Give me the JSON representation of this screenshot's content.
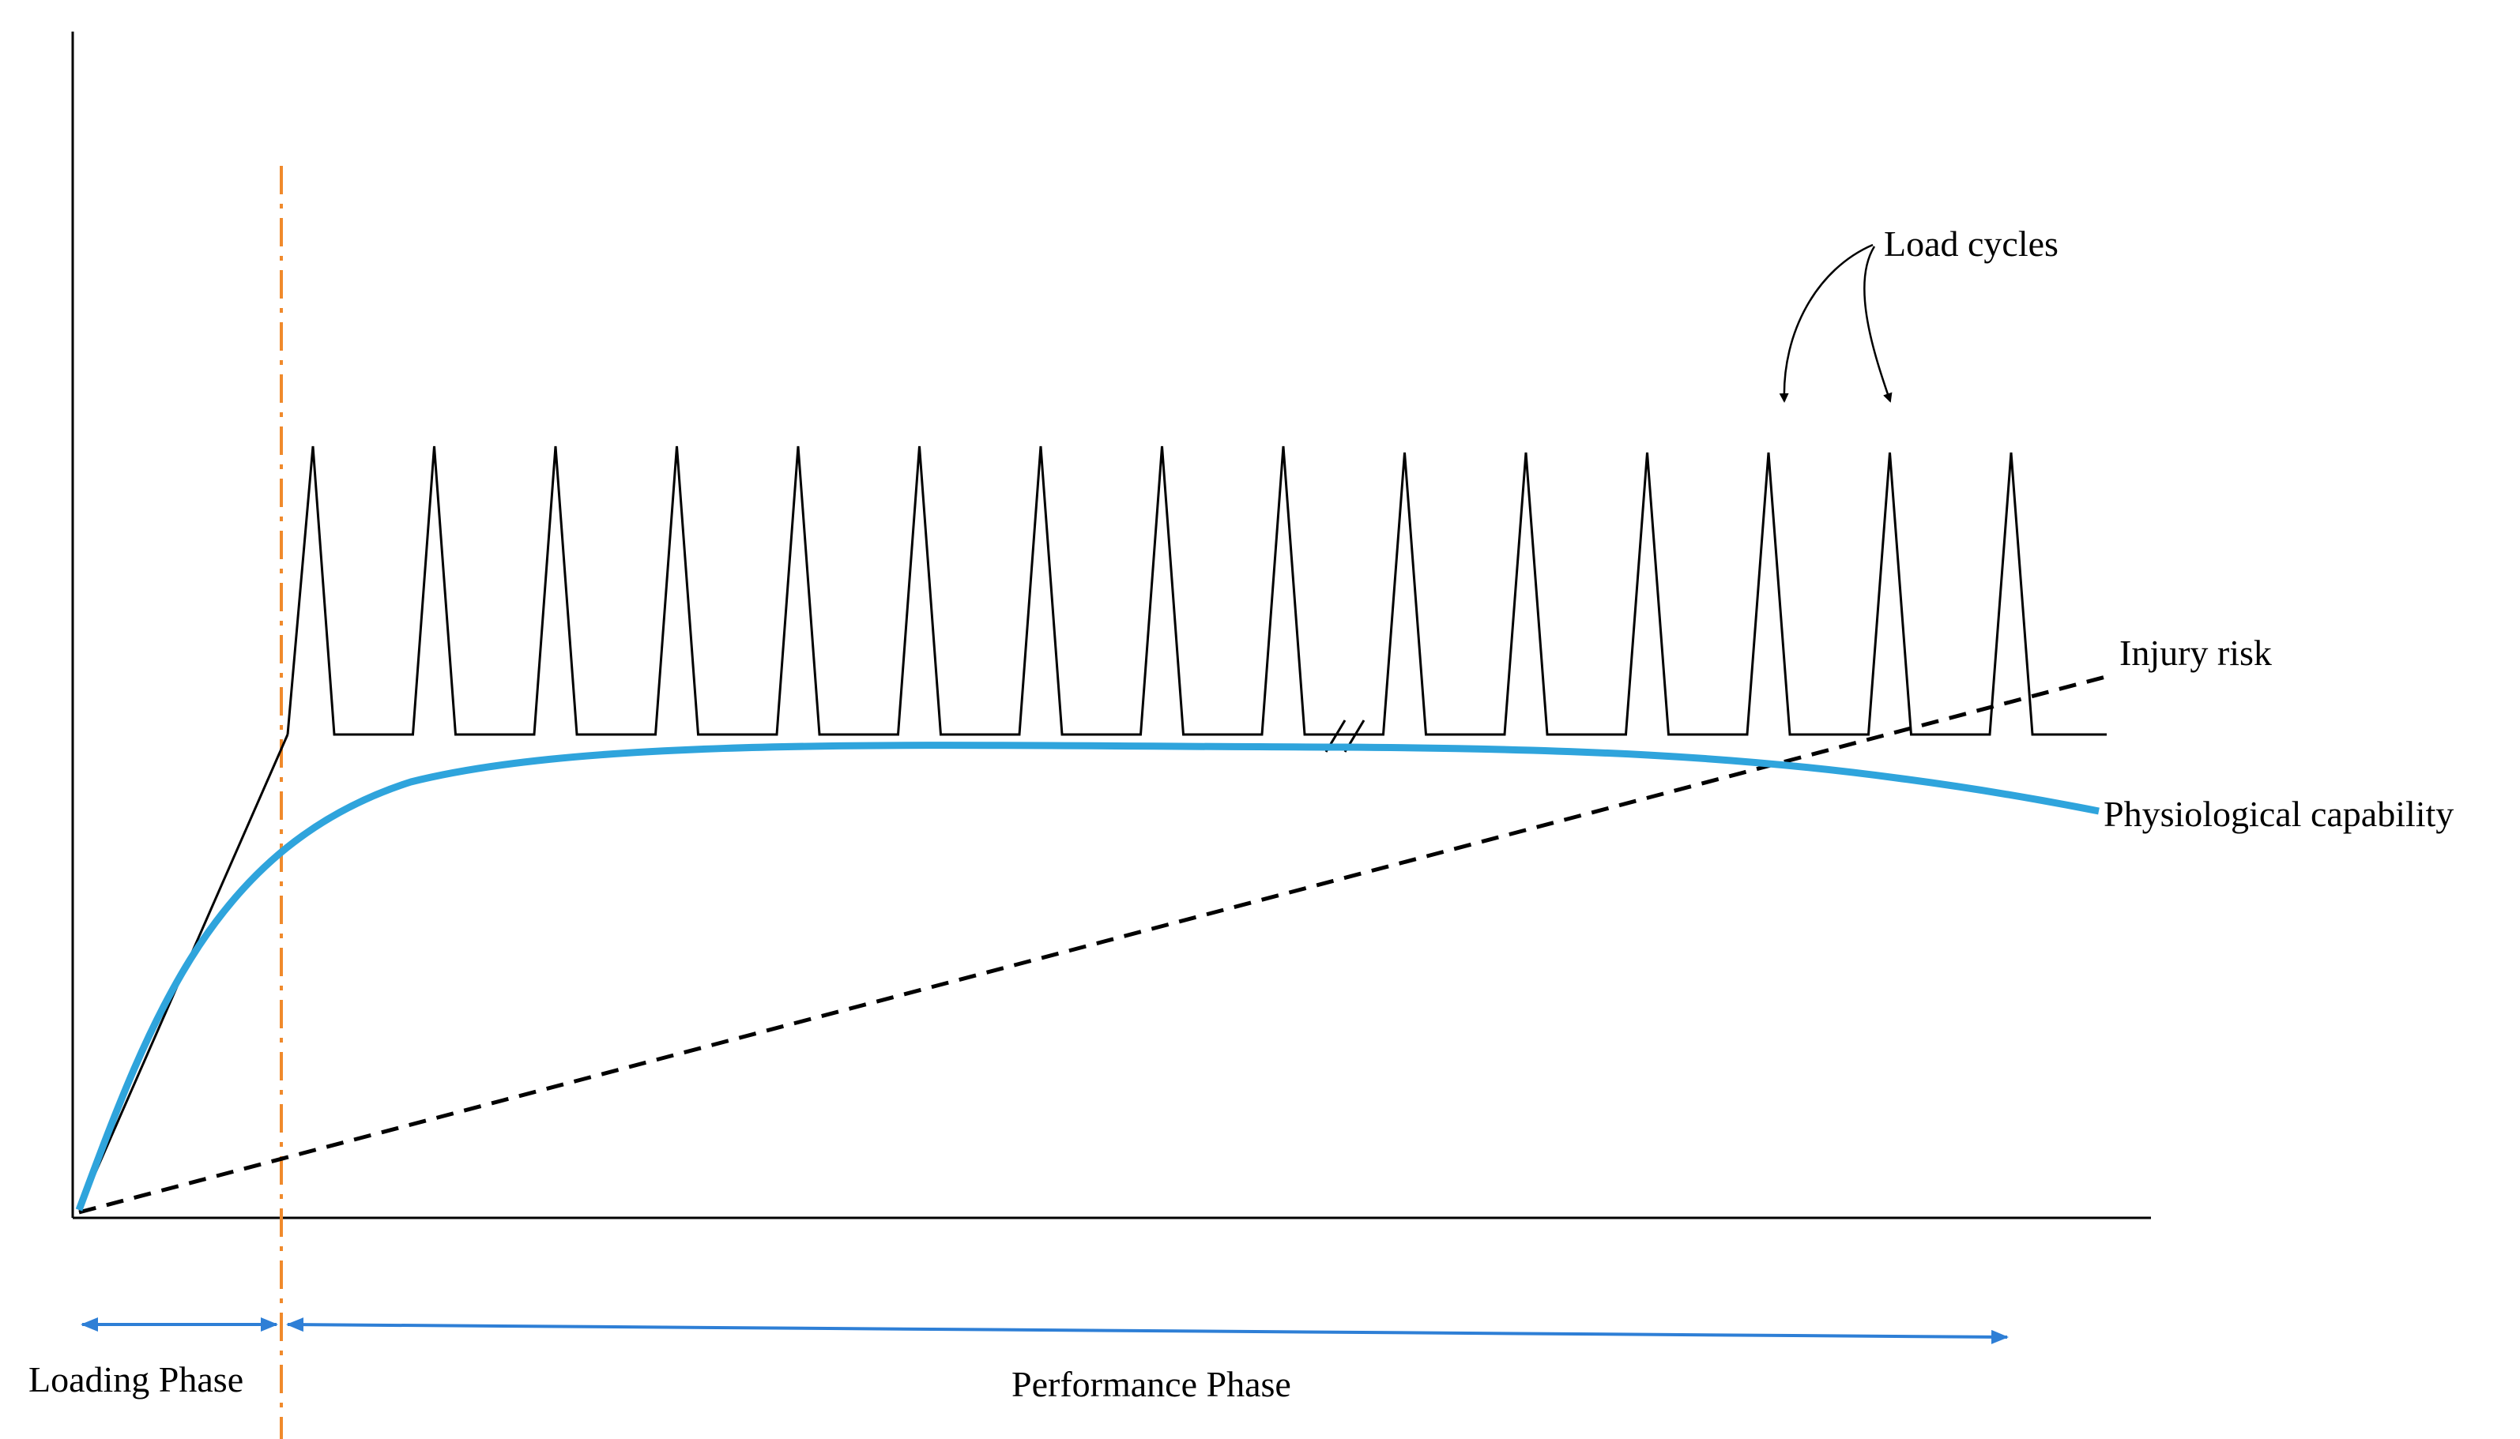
{
  "labels": {
    "load_cycles": "Load cycles",
    "injury_risk": "Injury risk",
    "physiological_capability": "Physiological capability",
    "loading_phase": "Loading Phase",
    "performance_phase": "Performance Phase"
  },
  "colors": {
    "axis": "#000000",
    "load_cycles_line": "#000000",
    "injury_risk_line": "#000000",
    "capability_curve": "#2fa4dc",
    "phase_divider": "#f08a2c",
    "phase_arrows": "#2e7fd6"
  },
  "chart_data": {
    "type": "line",
    "title": "",
    "xlabel": "",
    "ylabel": "",
    "load_cycle_count": 15,
    "axis_break_between_cycles": [
      9,
      10
    ],
    "series": [
      {
        "name": "Load cycles",
        "style": "solid black sawtooth"
      },
      {
        "name": "Injury risk",
        "style": "dashed black, rising linearly"
      },
      {
        "name": "Physiological capability",
        "style": "solid blue, rises then plateaus then declines"
      }
    ],
    "phases": [
      "Loading Phase",
      "Performance Phase"
    ]
  }
}
